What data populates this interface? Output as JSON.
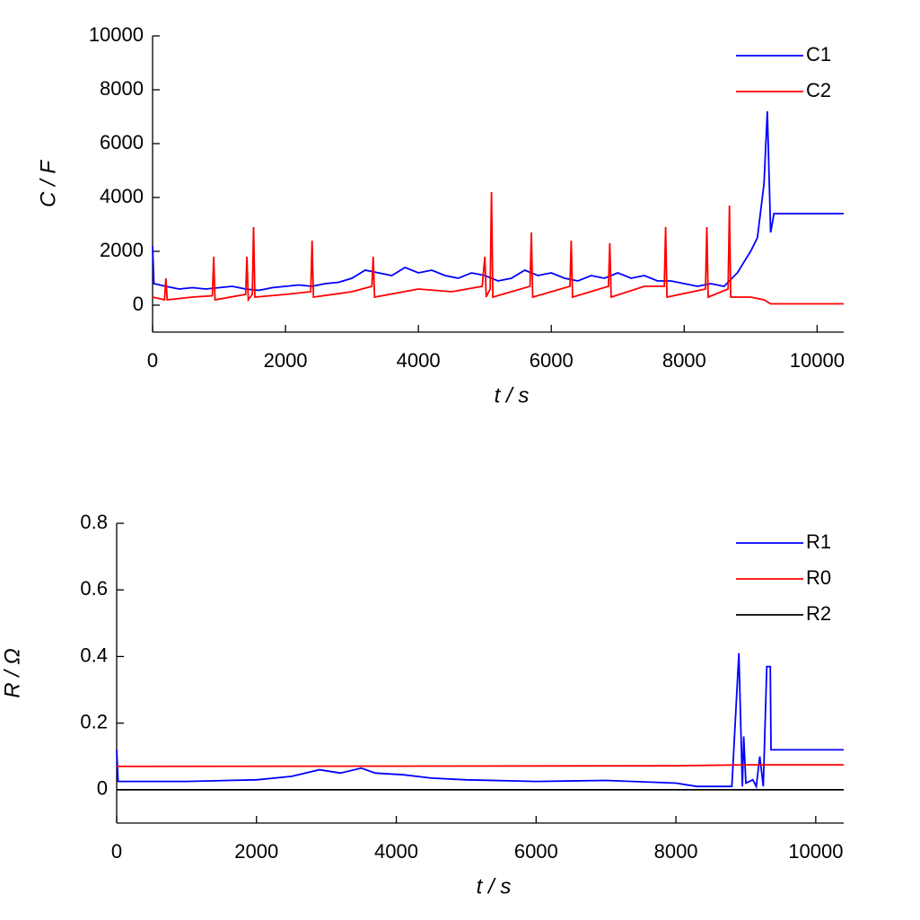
{
  "chart_data": [
    {
      "type": "line",
      "ylabel": "C / F",
      "xlabel": "t / s",
      "xlim": [
        0,
        10400
      ],
      "xticks": [
        0,
        2000,
        4000,
        6000,
        8000,
        10000
      ],
      "ylim": [
        -1000,
        10000
      ],
      "yticks": [
        0,
        2000,
        4000,
        6000,
        8000,
        10000
      ],
      "legend": "upper right",
      "series": [
        {
          "name": "C1",
          "color": "#0000ff",
          "x": [
            0,
            20,
            200,
            400,
            600,
            800,
            1000,
            1200,
            1400,
            1600,
            1800,
            2000,
            2200,
            2400,
            2600,
            2800,
            3000,
            3200,
            3400,
            3600,
            3800,
            4000,
            4200,
            4400,
            4600,
            4800,
            5000,
            5200,
            5400,
            5600,
            5800,
            6000,
            6200,
            6400,
            6600,
            6800,
            7000,
            7200,
            7400,
            7600,
            7800,
            8000,
            8200,
            8400,
            8600,
            8800,
            9000,
            9100,
            9200,
            9250,
            9300,
            9350,
            10400
          ],
          "values": [
            2200,
            800,
            700,
            600,
            650,
            600,
            650,
            700,
            600,
            550,
            650,
            700,
            750,
            700,
            800,
            850,
            1000,
            1300,
            1200,
            1100,
            1400,
            1200,
            1300,
            1100,
            1000,
            1200,
            1100,
            900,
            1000,
            1300,
            1100,
            1200,
            1000,
            900,
            1100,
            1000,
            1200,
            1000,
            1100,
            900,
            900,
            800,
            700,
            800,
            700,
            1200,
            2000,
            2500,
            4500,
            7200,
            2700,
            3400,
            3400
          ]
        },
        {
          "name": "C2",
          "color": "#ff0000",
          "x": [
            0,
            180,
            200,
            220,
            600,
            900,
            920,
            940,
            1400,
            1420,
            1440,
            1500,
            1520,
            1540,
            2000,
            2380,
            2400,
            2420,
            3000,
            3300,
            3320,
            3340,
            4000,
            4500,
            4960,
            5000,
            5020,
            5080,
            5100,
            5120,
            5680,
            5700,
            5720,
            6280,
            6300,
            6320,
            6860,
            6880,
            6900,
            7400,
            7700,
            7720,
            7740,
            8320,
            8340,
            8360,
            8660,
            8680,
            8700,
            9000,
            9200,
            9300,
            10400
          ],
          "values": [
            300,
            200,
            1000,
            200,
            300,
            350,
            1800,
            200,
            400,
            1800,
            200,
            400,
            2900,
            300,
            400,
            500,
            2400,
            300,
            500,
            700,
            1800,
            300,
            600,
            500,
            700,
            1800,
            300,
            600,
            4200,
            300,
            700,
            2700,
            300,
            700,
            2400,
            300,
            700,
            2300,
            300,
            700,
            700,
            2900,
            300,
            600,
            2900,
            300,
            600,
            3700,
            300,
            300,
            200,
            50,
            50
          ]
        }
      ]
    },
    {
      "type": "line",
      "ylabel": "R / Ω",
      "xlabel": "t / s",
      "xlim": [
        0,
        10400
      ],
      "xticks": [
        0,
        2000,
        4000,
        6000,
        8000,
        10000
      ],
      "ylim": [
        -0.1,
        0.8
      ],
      "yticks": [
        0,
        0.2,
        0.4,
        0.6,
        0.8
      ],
      "legend": "upper right",
      "series": [
        {
          "name": "R1",
          "color": "#0000ff",
          "x": [
            0,
            20,
            1000,
            2000,
            2500,
            2900,
            3200,
            3500,
            3700,
            4100,
            4500,
            5000,
            6000,
            7000,
            8000,
            8300,
            8800,
            8900,
            8950,
            8970,
            9000,
            9100,
            9150,
            9200,
            9250,
            9300,
            9350,
            9360,
            10400
          ],
          "values": [
            0.12,
            0.025,
            0.025,
            0.03,
            0.04,
            0.06,
            0.05,
            0.065,
            0.05,
            0.045,
            0.035,
            0.03,
            0.025,
            0.028,
            0.02,
            0.01,
            0.01,
            0.41,
            0.01,
            0.16,
            0.02,
            0.03,
            0.01,
            0.1,
            0.01,
            0.37,
            0.37,
            0.12,
            0.12
          ]
        },
        {
          "name": "R0",
          "color": "#ff0000",
          "x": [
            0,
            8000,
            9000,
            10400
          ],
          "values": [
            0.07,
            0.072,
            0.075,
            0.075
          ]
        },
        {
          "name": "R2",
          "color": "#000000",
          "x": [
            0,
            10400
          ],
          "values": [
            0,
            0
          ]
        }
      ]
    }
  ]
}
